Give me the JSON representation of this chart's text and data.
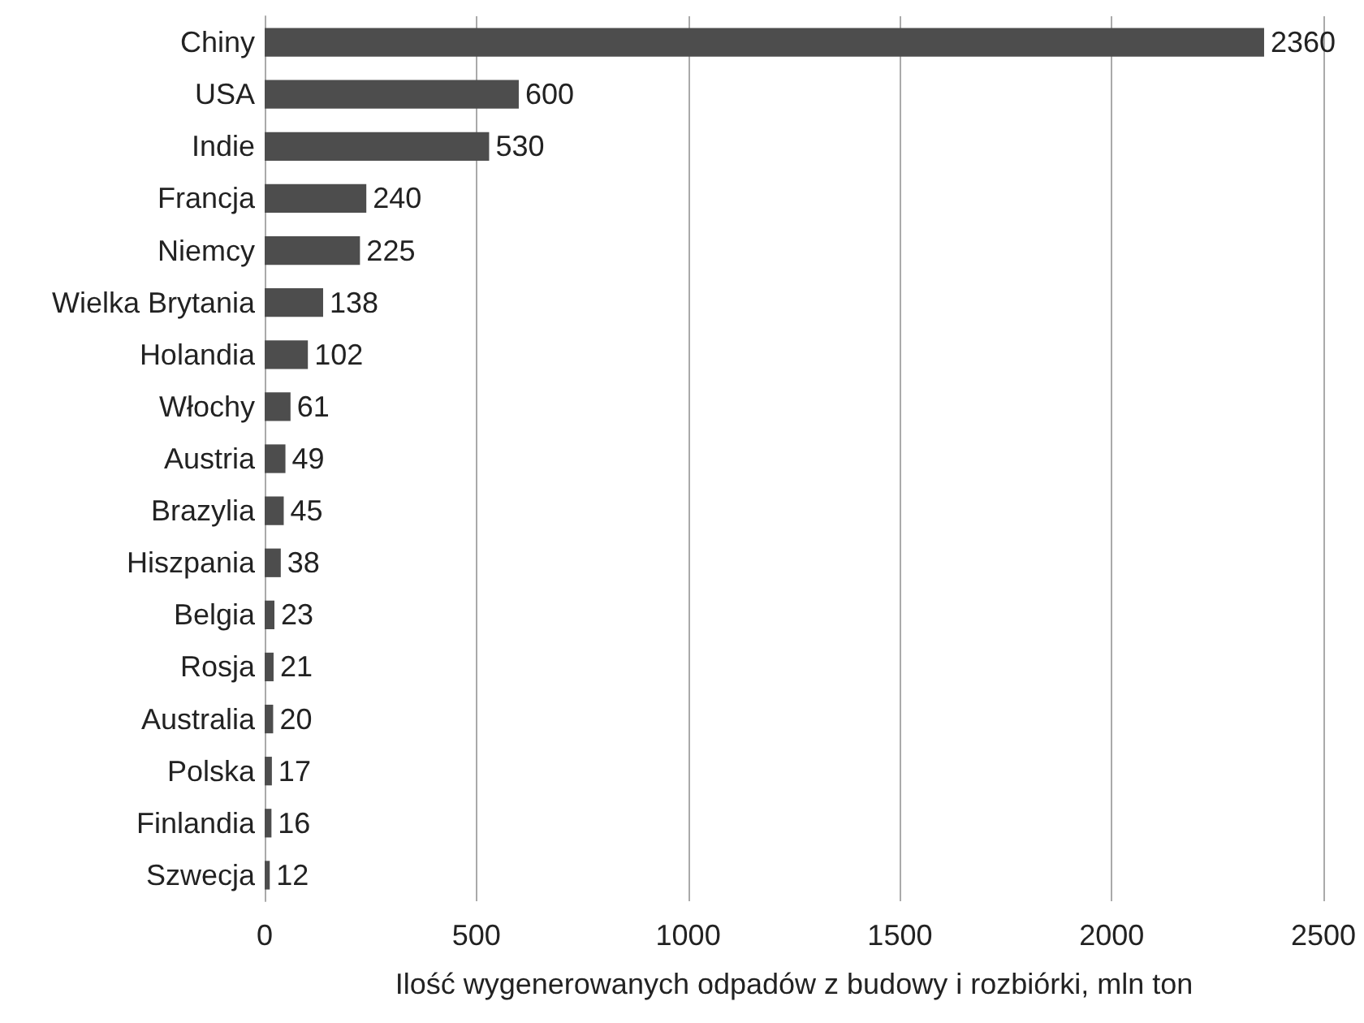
{
  "chart_data": {
    "type": "bar",
    "orientation": "horizontal",
    "xlabel": "Ilość wygenerowanych odpadów z budowy i rozbiórki, mln ton",
    "categories": [
      "Chiny",
      "USA",
      "Indie",
      "Francja",
      "Niemcy",
      "Wielka Brytania",
      "Holandia",
      "Włochy",
      "Austria",
      "Brazylia",
      "Hiszpania",
      "Belgia",
      "Rosja",
      "Australia",
      "Polska",
      "Finlandia",
      "Szwecja"
    ],
    "values": [
      2360,
      600,
      530,
      240,
      225,
      138,
      102,
      61,
      49,
      45,
      38,
      23,
      21,
      20,
      17,
      16,
      12
    ],
    "color": "#4d4d4d",
    "xlim": [
      0,
      2500
    ],
    "xticks": [
      0,
      500,
      1000,
      1500,
      2000,
      2500
    ],
    "grid": "x",
    "data_labels": true
  }
}
